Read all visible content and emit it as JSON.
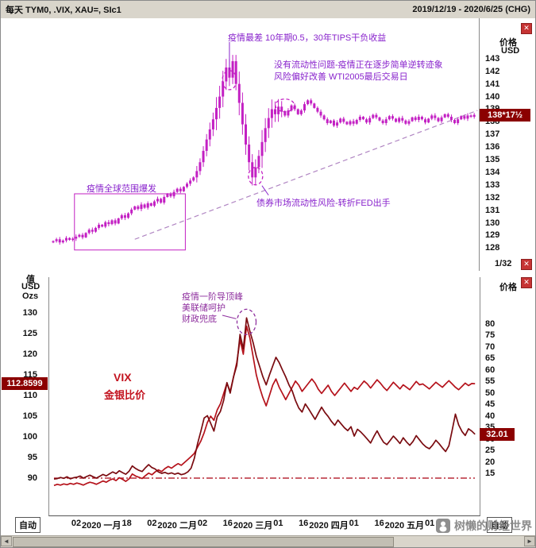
{
  "window": {
    "title_left": "每天 TYM0, .VIX, XAU=, SIc1",
    "title_right": "2019/12/19 - 2020/6/25 (CHG)"
  },
  "colors": {
    "candle": "#c320c3",
    "annotation": "#8822cc",
    "annotation2": "#8e2f9e",
    "ratio_line": "#b5121b",
    "vix_line": "#7a0b10",
    "badge_bg": "#8b0000",
    "hline": "#aa0011",
    "trendline": "#b085c2"
  },
  "top_chart": {
    "price_axis_header": "价格",
    "price_axis_unit": "USD",
    "current_price": "138*17½",
    "tick_unit": "1/32",
    "annotations": {
      "peak_note": "疫情最差 10年期0.5，30年TIPS干负收益",
      "liquidity_note_1": "没有流动性问题-疫情正在逐步简单逆转迹象",
      "liquidity_note_2": "风险偏好改善 WTI2005最后交易日",
      "outbreak_box_label": "疫情全球范围爆发",
      "bond_risk_note": "债券市场流动性风险-转折FED出手"
    }
  },
  "bottom_chart": {
    "left_axis_header": "值",
    "left_axis_unit1": "USD",
    "left_axis_unit2": "Ozs",
    "right_axis_header": "价格",
    "left_current": "112.8599",
    "right_current": "32.01",
    "auto_button": "自动",
    "annotations": {
      "peak_note_1": "疫情一阶导顶峰",
      "peak_note_2": "美联储呵护",
      "peak_note_3": "财政兜底",
      "series_label_1": "VIX",
      "series_label_2": "金银比价"
    }
  },
  "x_axis": {
    "labels": [
      "02",
      "2020 一月",
      "18",
      "02",
      "2020 二月",
      "02",
      "16",
      "2020 三月",
      "01",
      "16",
      "2020 四月",
      "01",
      "16",
      "2020 五月",
      "01"
    ]
  },
  "watermark": {
    "text": "树懒的财经世界"
  },
  "chart_data": [
    {
      "type": "candlestick",
      "instrument": "TYM0",
      "interval": "每天",
      "period": "2019/12/19 - 2020/6/25",
      "ylim_visible": [
        128,
        143
      ],
      "y_ticks": [
        143,
        142,
        141,
        140,
        139,
        138,
        137,
        136,
        135,
        134,
        133,
        132,
        131,
        130,
        129,
        128
      ],
      "last_price_32nds": "138*17½",
      "closes": [
        128.55,
        128.7,
        128.45,
        128.6,
        128.8,
        128.65,
        128.75,
        128.9,
        129.05,
        128.85,
        129.2,
        129.45,
        129.3,
        129.6,
        129.85,
        129.7,
        130.05,
        129.9,
        130.2,
        129.95,
        130.35,
        130.6,
        130.4,
        130.75,
        131.05,
        131.3,
        131.1,
        131.45,
        131.2,
        131.55,
        131.35,
        131.7,
        131.9,
        131.6,
        132.05,
        132.3,
        132.1,
        132.45,
        132.7,
        132.5,
        132.85,
        133.1,
        133.35,
        133.6,
        134.1,
        134.8,
        135.7,
        136.6,
        137.4,
        138.2,
        139.1,
        140.0,
        141.2,
        142.3,
        141.5,
        142.8,
        141.0,
        139.5,
        137.8,
        136.2,
        134.8,
        133.6,
        134.4,
        135.3,
        136.4,
        137.5,
        138.3,
        139.0,
        138.6,
        139.2,
        138.8,
        138.5,
        138.9,
        139.3,
        139.0,
        138.6,
        138.9,
        139.4,
        139.7,
        139.45,
        139.1,
        138.8,
        138.5,
        138.2,
        137.9,
        138.1,
        137.7,
        137.95,
        138.25,
        138.0,
        137.8,
        138.05,
        137.85,
        138.15,
        138.4,
        138.2,
        137.95,
        138.3,
        138.55,
        138.35,
        138.1,
        137.9,
        138.2,
        138.45,
        138.25,
        138.0,
        138.3,
        138.1,
        137.85,
        138.05,
        138.35,
        138.15,
        138.4,
        138.2,
        137.95,
        138.25,
        138.5,
        138.3,
        138.05,
        138.35,
        138.6,
        138.4,
        138.15,
        137.9,
        138.2,
        138.45,
        138.25,
        138.5,
        138.4,
        138.55
      ],
      "trendline": {
        "from_index": 25,
        "from_price": 128.7,
        "to_index": 130,
        "to_price": 138.9
      },
      "outbreak_box": {
        "from_index": 7,
        "to_index": 40,
        "price_top": 132.3,
        "price_bottom": 127.85
      },
      "circles": [
        {
          "index": 54,
          "price": 141.3,
          "rx": 9,
          "ry": 12
        },
        {
          "index": 71,
          "price": 139.3,
          "rx": 12,
          "ry": 8
        },
        {
          "index": 62,
          "price": 133.7,
          "rx": 9,
          "ry": 11
        }
      ]
    },
    {
      "type": "line",
      "x_tick_labels": [
        "02",
        "2020 一月",
        "18",
        "02",
        "2020 二月",
        "02",
        "16",
        "2020 三月",
        "01",
        "16",
        "2020 四月",
        "01",
        "16",
        "2020 五月",
        "01"
      ],
      "left_axis": {
        "title": "值 USD Ozs",
        "ticks": [
          130,
          125,
          120,
          115,
          110,
          105,
          100,
          95,
          90
        ],
        "current": 112.8599
      },
      "right_axis": {
        "title": "价格",
        "ticks": [
          80,
          75,
          70,
          65,
          60,
          55,
          50,
          45,
          40,
          35,
          30,
          25,
          20,
          15
        ],
        "current": 32.01
      },
      "left_ticks": [
        130,
        125,
        120,
        115,
        110,
        105,
        100,
        95,
        90
      ],
      "right_ticks": [
        80,
        75,
        70,
        65,
        60,
        55,
        50,
        45,
        40,
        35,
        30,
        25,
        20,
        15
      ],
      "hline": {
        "axis": "left",
        "value": 90,
        "style": "dash-dot"
      },
      "peak_circle": {
        "index": 59,
        "rx": 12,
        "ry": 16
      },
      "series": [
        {
          "name": "金银比价",
          "axis": "left",
          "color": "#b5121b",
          "values": [
            88.2,
            88.5,
            88.3,
            88.6,
            88.4,
            88.7,
            88.5,
            88.8,
            88.6,
            88.3,
            88.7,
            89.0,
            88.8,
            88.5,
            88.9,
            89.3,
            89.0,
            89.5,
            89.8,
            89.4,
            90.1,
            89.7,
            89.2,
            89.8,
            91.0,
            90.5,
            90.2,
            89.9,
            90.6,
            91.2,
            90.8,
            91.5,
            92.0,
            91.6,
            92.3,
            92.8,
            92.4,
            93.0,
            93.5,
            93.1,
            93.8,
            94.5,
            95.2,
            96.0,
            97.5,
            99.0,
            101.0,
            103.5,
            105.0,
            104.0,
            106.5,
            108.0,
            110.5,
            113.0,
            111.0,
            114.5,
            118.0,
            123.5,
            120.0,
            126.8,
            124.0,
            119.5,
            115.0,
            112.0,
            109.5,
            107.5,
            110.0,
            112.5,
            114.0,
            112.0,
            110.5,
            109.0,
            110.5,
            112.0,
            113.5,
            112.5,
            111.0,
            112.0,
            113.0,
            114.0,
            113.0,
            111.5,
            110.5,
            111.5,
            112.5,
            111.0,
            110.0,
            111.0,
            112.0,
            113.0,
            112.0,
            111.0,
            112.0,
            111.5,
            112.5,
            113.5,
            112.8,
            111.8,
            112.8,
            113.8,
            113.0,
            112.0,
            111.2,
            112.2,
            113.2,
            112.4,
            111.6,
            112.6,
            112.0,
            111.4,
            112.4,
            113.4,
            112.6,
            112.8,
            112.2,
            111.6,
            112.4,
            113.2,
            112.6,
            112.0,
            112.8,
            113.6,
            112.8,
            112.0,
            111.4,
            112.2,
            113.0,
            112.4,
            112.9,
            112.86
          ]
        },
        {
          "name": "VIX",
          "axis": "right",
          "color": "#7a0b10",
          "values": [
            12.5,
            12.7,
            13.2,
            12.8,
            13.5,
            12.6,
            13.1,
            13.3,
            13.8,
            12.9,
            13.6,
            14.2,
            13.5,
            12.9,
            13.7,
            14.5,
            13.9,
            14.8,
            15.6,
            14.9,
            16.1,
            15.3,
            14.6,
            15.9,
            18.2,
            17.1,
            16.3,
            15.8,
            17.4,
            18.8,
            17.5,
            16.9,
            15.6,
            15.0,
            15.4,
            14.8,
            15.2,
            14.6,
            15.1,
            14.4,
            14.8,
            15.6,
            17.2,
            21.5,
            27.9,
            33.4,
            39.1,
            40.1,
            36.8,
            33.4,
            39.6,
            42.0,
            46.8,
            54.5,
            49.9,
            57.0,
            62.0,
            75.5,
            69.2,
            82.7,
            77.0,
            72.0,
            66.0,
            61.6,
            57.1,
            53.5,
            57.8,
            61.7,
            65.5,
            63.2,
            60.0,
            57.0,
            53.5,
            50.9,
            46.7,
            43.4,
            41.7,
            45.2,
            43.1,
            40.8,
            38.5,
            41.2,
            43.8,
            41.5,
            39.8,
            37.6,
            35.9,
            38.2,
            36.5,
            34.8,
            33.6,
            35.3,
            31.2,
            34.2,
            33.0,
            31.5,
            29.9,
            28.2,
            31.0,
            33.5,
            30.8,
            28.5,
            27.5,
            29.3,
            31.2,
            29.7,
            28.0,
            30.5,
            28.7,
            27.2,
            28.9,
            31.4,
            29.6,
            27.8,
            26.5,
            25.7,
            27.3,
            29.4,
            27.9,
            26.1,
            24.5,
            27.0,
            33.7,
            40.8,
            36.1,
            33.2,
            31.5,
            34.4,
            33.4,
            32.01
          ]
        }
      ]
    }
  ]
}
